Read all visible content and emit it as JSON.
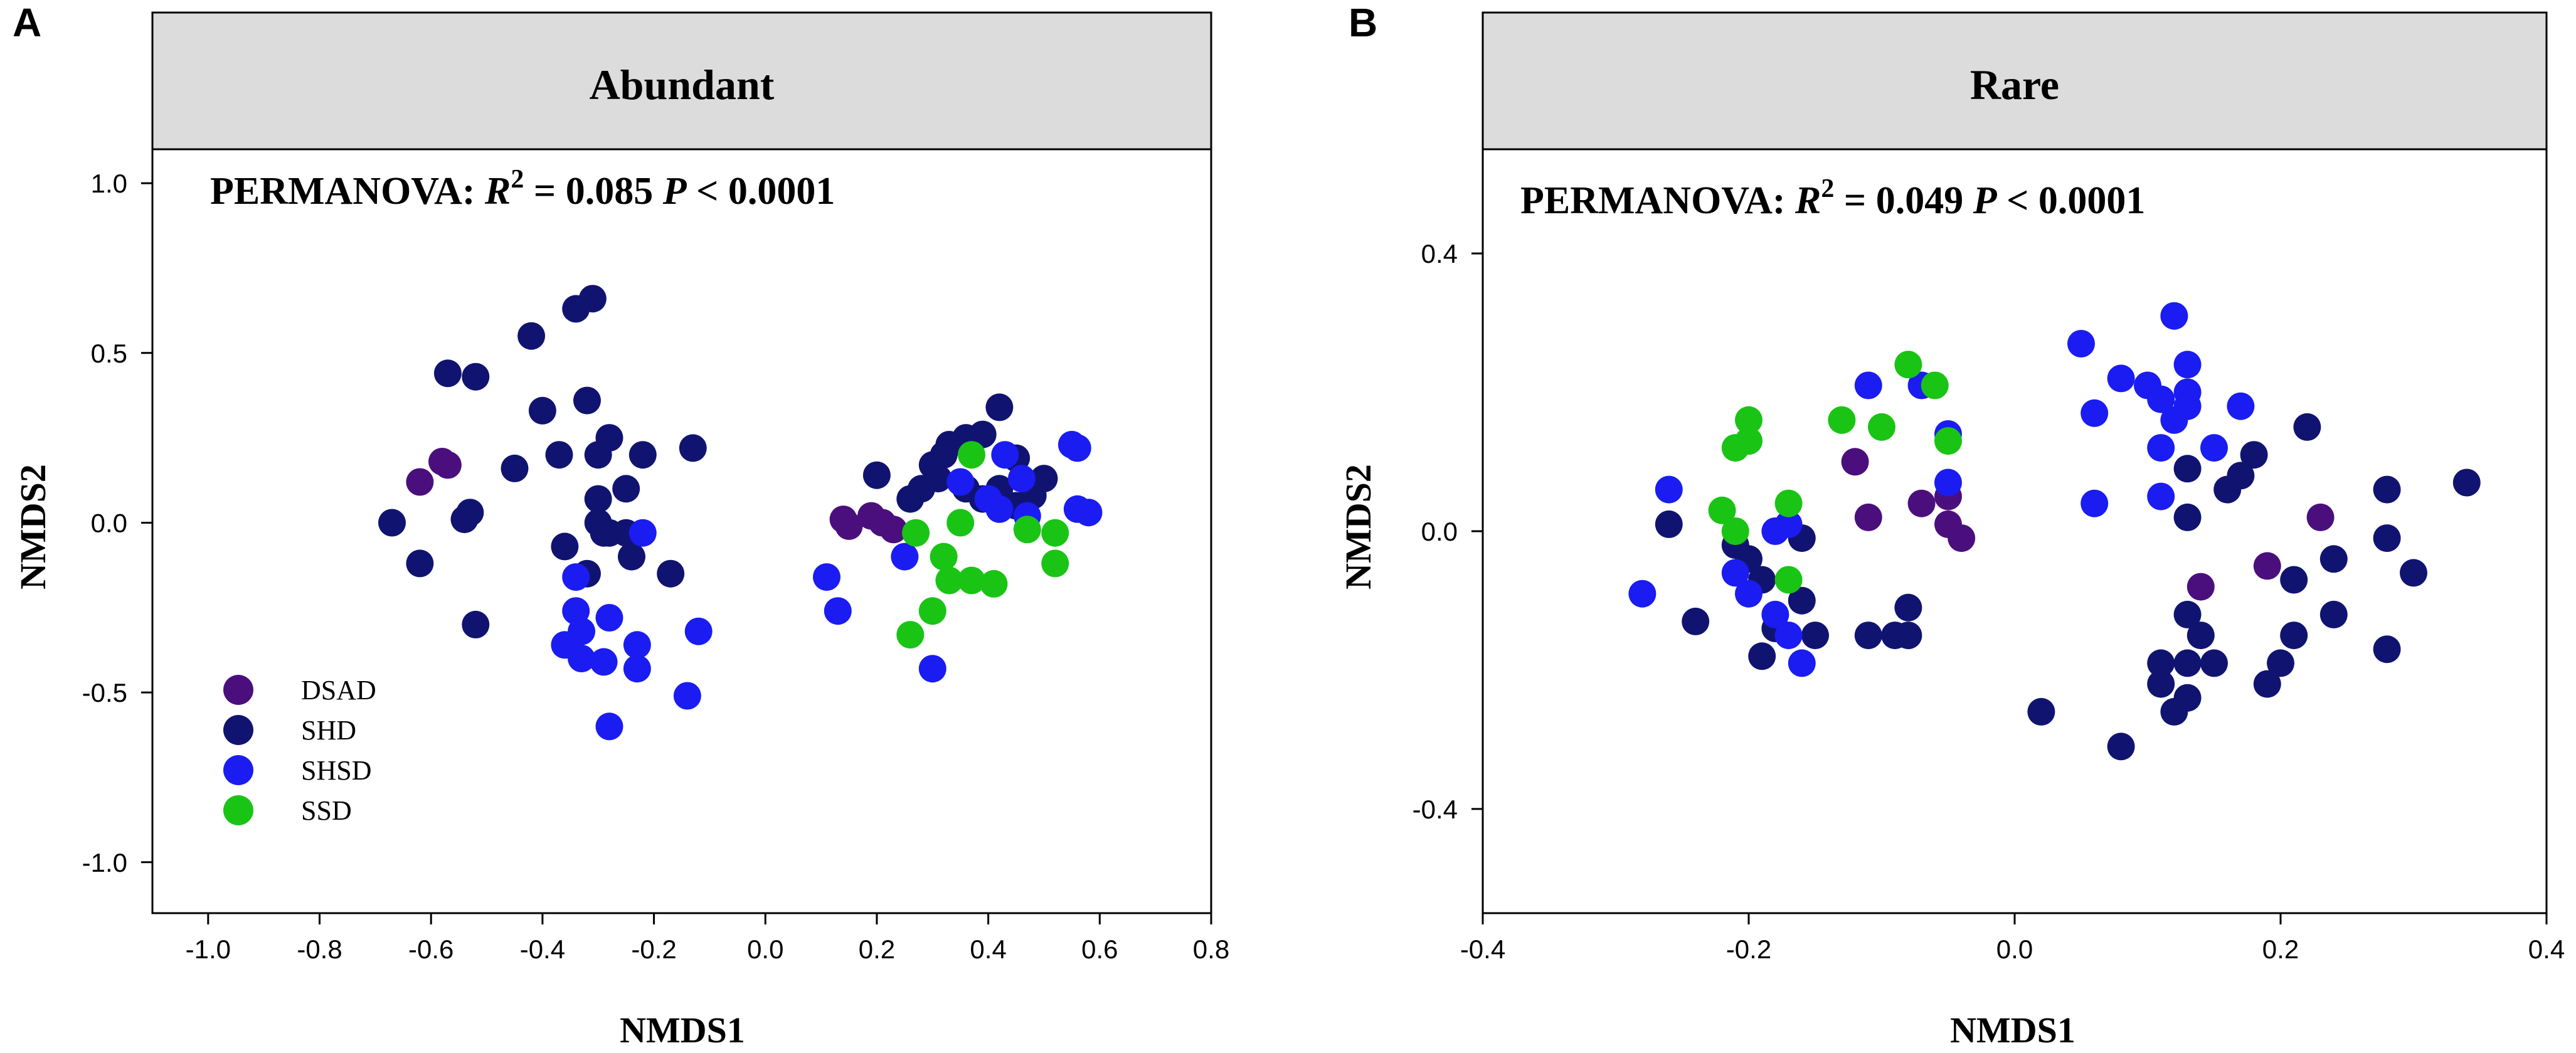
{
  "colors": {
    "DSAD": "#4b0f7d",
    "SHD": "#101470",
    "SHSD": "#1a1cf2",
    "SSD": "#19c415"
  },
  "legend": {
    "entries": [
      "DSAD",
      "SHD",
      "SHSD",
      "SSD"
    ]
  },
  "chart_data": [
    {
      "panel": "A",
      "type": "scatter",
      "title": "Abundant",
      "stat": {
        "prefix": "PERMANOVA: ",
        "r_label": "R",
        "r_sup": "2",
        "r_value": " = 0.085",
        "p_label": "P",
        "p_value": " < 0.0001"
      },
      "xlabel": "NMDS1",
      "ylabel": "NMDS2",
      "xlim": [
        -1.1,
        0.8
      ],
      "ylim": [
        -1.15,
        1.1
      ],
      "xticks": [
        -1.0,
        -0.8,
        -0.6,
        -0.4,
        -0.2,
        0.0,
        0.2,
        0.4,
        0.6,
        0.8
      ],
      "xtick_labels": [
        "-1.0",
        "-0.8",
        "-0.6",
        "-0.4",
        "-0.2",
        "0.0",
        "0.2",
        "0.4",
        "0.6",
        "0.8"
      ],
      "yticks": [
        1.0,
        0.5,
        0.0,
        -0.5,
        -1.0
      ],
      "ytick_labels": [
        "1.0",
        "0.5",
        "0.0",
        "-0.5",
        "-1.0"
      ],
      "series": [
        {
          "name": "DSAD",
          "points": [
            [
              -0.62,
              0.12
            ],
            [
              -0.58,
              0.18
            ],
            [
              -0.57,
              0.17
            ],
            [
              0.14,
              0.01
            ],
            [
              0.15,
              -0.01
            ],
            [
              0.19,
              0.02
            ],
            [
              0.21,
              0.0
            ],
            [
              0.23,
              -0.02
            ]
          ]
        },
        {
          "name": "SHD",
          "points": [
            [
              -0.57,
              0.44
            ],
            [
              -0.52,
              0.43
            ],
            [
              -0.42,
              0.55
            ],
            [
              -0.34,
              0.63
            ],
            [
              -0.31,
              0.66
            ],
            [
              -0.4,
              0.33
            ],
            [
              -0.32,
              0.36
            ],
            [
              -0.3,
              0.2
            ],
            [
              -0.28,
              0.25
            ],
            [
              -0.45,
              0.16
            ],
            [
              -0.37,
              0.2
            ],
            [
              -0.25,
              0.1
            ],
            [
              -0.22,
              0.2
            ],
            [
              -0.13,
              0.22
            ],
            [
              -0.53,
              0.03
            ],
            [
              -0.54,
              0.01
            ],
            [
              -0.3,
              0.07
            ],
            [
              -0.67,
              0.0
            ],
            [
              -0.62,
              -0.12
            ],
            [
              -0.3,
              0.0
            ],
            [
              -0.28,
              -0.03
            ],
            [
              -0.36,
              -0.07
            ],
            [
              -0.29,
              -0.03
            ],
            [
              -0.25,
              -0.03
            ],
            [
              -0.24,
              -0.1
            ],
            [
              -0.52,
              -0.3
            ],
            [
              -0.32,
              -0.15
            ],
            [
              -0.17,
              -0.15
            ],
            [
              0.2,
              0.14
            ],
            [
              0.28,
              0.1
            ],
            [
              0.3,
              0.17
            ],
            [
              0.32,
              0.2
            ],
            [
              0.33,
              0.23
            ],
            [
              0.36,
              0.25
            ],
            [
              0.39,
              0.26
            ],
            [
              0.42,
              0.34
            ],
            [
              0.45,
              0.19
            ],
            [
              0.31,
              0.13
            ],
            [
              0.36,
              0.1
            ],
            [
              0.39,
              0.07
            ],
            [
              0.42,
              0.1
            ],
            [
              0.45,
              0.05
            ],
            [
              0.48,
              0.08
            ],
            [
              0.5,
              0.13
            ],
            [
              0.26,
              0.07
            ]
          ]
        },
        {
          "name": "SHSD",
          "points": [
            [
              -0.34,
              -0.16
            ],
            [
              -0.34,
              -0.26
            ],
            [
              -0.28,
              -0.28
            ],
            [
              -0.22,
              -0.03
            ],
            [
              -0.36,
              -0.36
            ],
            [
              -0.33,
              -0.32
            ],
            [
              -0.23,
              -0.36
            ],
            [
              -0.12,
              -0.32
            ],
            [
              -0.33,
              -0.4
            ],
            [
              -0.29,
              -0.41
            ],
            [
              -0.23,
              -0.43
            ],
            [
              -0.14,
              -0.51
            ],
            [
              -0.28,
              -0.6
            ],
            [
              0.11,
              -0.16
            ],
            [
              0.13,
              -0.26
            ],
            [
              0.25,
              -0.1
            ],
            [
              0.35,
              0.12
            ],
            [
              0.4,
              0.07
            ],
            [
              0.42,
              0.04
            ],
            [
              0.43,
              0.2
            ],
            [
              0.46,
              0.13
            ],
            [
              0.47,
              0.02
            ],
            [
              0.55,
              0.23
            ],
            [
              0.56,
              0.22
            ],
            [
              0.56,
              0.04
            ],
            [
              0.58,
              0.03
            ],
            [
              0.3,
              -0.43
            ]
          ]
        },
        {
          "name": "SSD",
          "points": [
            [
              0.37,
              0.2
            ],
            [
              0.35,
              0.0
            ],
            [
              0.27,
              -0.03
            ],
            [
              0.32,
              -0.1
            ],
            [
              0.33,
              -0.17
            ],
            [
              0.37,
              -0.17
            ],
            [
              0.41,
              -0.18
            ],
            [
              0.47,
              -0.02
            ],
            [
              0.52,
              -0.03
            ],
            [
              0.52,
              -0.12
            ],
            [
              0.3,
              -0.26
            ],
            [
              0.26,
              -0.33
            ]
          ]
        }
      ]
    },
    {
      "panel": "B",
      "type": "scatter",
      "title": "Rare",
      "stat": {
        "prefix": "PERMANOVA: ",
        "r_label": "R",
        "r_sup": "2",
        "r_value": " = 0.049",
        "p_label": "P",
        "p_value": " < 0.0001"
      },
      "xlabel": "NMDS1",
      "ylabel": "NMDS2",
      "xlim": [
        -0.4,
        0.4
      ],
      "ylim": [
        -0.55,
        0.55
      ],
      "xticks": [
        -0.4,
        -0.2,
        0.0,
        0.2,
        0.4
      ],
      "xtick_labels": [
        "-0.4",
        "-0.2",
        "0.0",
        "0.2",
        "0.4"
      ],
      "yticks": [
        0.4,
        0.0,
        -0.4
      ],
      "ytick_labels": [
        "0.4",
        "0.0",
        "-0.4"
      ],
      "series": [
        {
          "name": "DSAD",
          "points": [
            [
              -0.12,
              0.1
            ],
            [
              -0.11,
              0.02
            ],
            [
              -0.07,
              0.04
            ],
            [
              -0.05,
              0.05
            ],
            [
              -0.05,
              0.01
            ],
            [
              -0.04,
              -0.01
            ],
            [
              0.14,
              -0.08
            ],
            [
              0.19,
              -0.05
            ],
            [
              0.23,
              0.02
            ]
          ]
        },
        {
          "name": "SHD",
          "points": [
            [
              -0.26,
              0.01
            ],
            [
              -0.24,
              -0.13
            ],
            [
              -0.21,
              -0.02
            ],
            [
              -0.2,
              -0.04
            ],
            [
              -0.19,
              -0.07
            ],
            [
              -0.19,
              -0.18
            ],
            [
              -0.18,
              -0.14
            ],
            [
              -0.16,
              -0.1
            ],
            [
              -0.16,
              -0.01
            ],
            [
              -0.15,
              -0.15
            ],
            [
              -0.11,
              -0.15
            ],
            [
              -0.09,
              -0.15
            ],
            [
              -0.08,
              -0.15
            ],
            [
              -0.08,
              -0.11
            ],
            [
              0.02,
              -0.26
            ],
            [
              0.08,
              -0.31
            ],
            [
              0.11,
              -0.19
            ],
            [
              0.11,
              -0.22
            ],
            [
              0.12,
              -0.26
            ],
            [
              0.13,
              -0.24
            ],
            [
              0.13,
              -0.19
            ],
            [
              0.13,
              -0.12
            ],
            [
              0.14,
              -0.15
            ],
            [
              0.15,
              -0.19
            ],
            [
              0.13,
              0.02
            ],
            [
              0.13,
              0.09
            ],
            [
              0.16,
              0.06
            ],
            [
              0.17,
              0.08
            ],
            [
              0.18,
              0.11
            ],
            [
              0.22,
              0.15
            ],
            [
              0.19,
              -0.22
            ],
            [
              0.2,
              -0.19
            ],
            [
              0.21,
              -0.15
            ],
            [
              0.24,
              -0.12
            ],
            [
              0.24,
              -0.04
            ],
            [
              0.21,
              -0.07
            ],
            [
              0.28,
              -0.17
            ],
            [
              0.28,
              0.06
            ],
            [
              0.28,
              -0.01
            ],
            [
              0.3,
              -0.06
            ],
            [
              0.34,
              0.07
            ]
          ]
        },
        {
          "name": "SHSD",
          "points": [
            [
              -0.28,
              -0.09
            ],
            [
              -0.26,
              0.06
            ],
            [
              -0.21,
              -0.06
            ],
            [
              -0.2,
              -0.09
            ],
            [
              -0.18,
              -0.12
            ],
            [
              -0.18,
              0.0
            ],
            [
              -0.17,
              0.01
            ],
            [
              -0.17,
              -0.15
            ],
            [
              -0.16,
              -0.19
            ],
            [
              -0.11,
              0.21
            ],
            [
              -0.07,
              0.21
            ],
            [
              -0.05,
              0.14
            ],
            [
              -0.05,
              0.07
            ],
            [
              0.05,
              0.27
            ],
            [
              0.06,
              0.17
            ],
            [
              0.06,
              0.04
            ],
            [
              0.08,
              0.22
            ],
            [
              0.1,
              0.21
            ],
            [
              0.12,
              0.31
            ],
            [
              0.11,
              0.19
            ],
            [
              0.12,
              0.16
            ],
            [
              0.13,
              0.18
            ],
            [
              0.13,
              0.2
            ],
            [
              0.13,
              0.24
            ],
            [
              0.11,
              0.12
            ],
            [
              0.11,
              0.05
            ],
            [
              0.15,
              0.12
            ],
            [
              0.17,
              0.18
            ]
          ]
        },
        {
          "name": "SSD",
          "points": [
            [
              -0.22,
              0.03
            ],
            [
              -0.21,
              0.12
            ],
            [
              -0.2,
              0.13
            ],
            [
              -0.2,
              0.16
            ],
            [
              -0.21,
              0.0
            ],
            [
              -0.17,
              0.04
            ],
            [
              -0.17,
              -0.07
            ],
            [
              -0.13,
              0.16
            ],
            [
              -0.1,
              0.15
            ],
            [
              -0.08,
              0.24
            ],
            [
              -0.06,
              0.21
            ],
            [
              -0.05,
              0.13
            ]
          ]
        }
      ]
    }
  ]
}
